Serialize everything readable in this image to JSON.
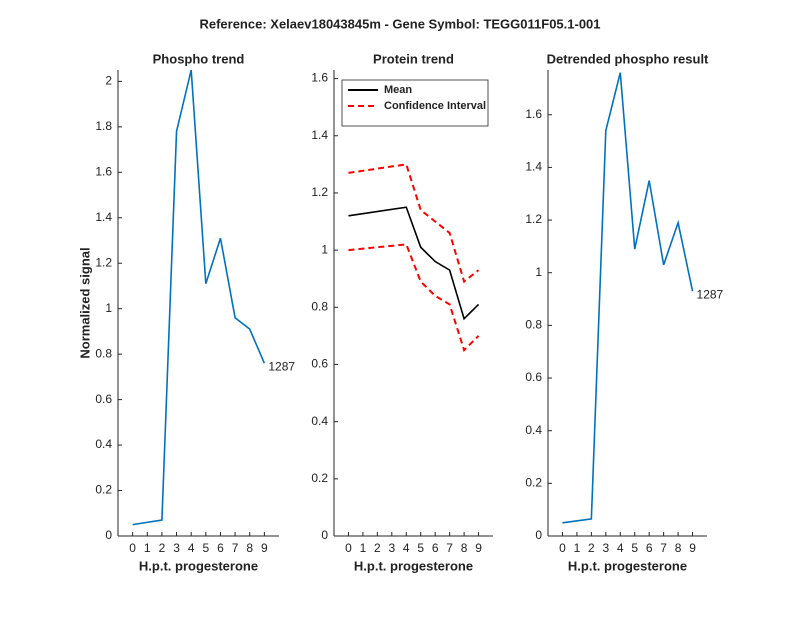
{
  "title": "Reference:  Xelaev18043845m - Gene Symbol:  TEGG011F05.1-001",
  "chart_data": [
    {
      "type": "line",
      "title": "Phospho trend",
      "xlabel": "H.p.t. progesterone",
      "ylabel": "Normalized signal",
      "xlim": [
        -1,
        10
      ],
      "ylim": [
        0,
        2.05
      ],
      "xticks": [
        0,
        1,
        2,
        3,
        4,
        5,
        6,
        7,
        8,
        9
      ],
      "yticks": [
        0,
        0.2,
        0.4,
        0.6,
        0.8,
        1,
        1.2,
        1.4,
        1.6,
        1.8,
        2
      ],
      "annotation": "1287",
      "series": [
        {
          "color": "#0072bd",
          "x": [
            0,
            2,
            3,
            4,
            5,
            6,
            7,
            8,
            9
          ],
          "values": [
            0.05,
            0.07,
            1.78,
            2.05,
            1.11,
            1.31,
            0.96,
            0.91,
            0.76
          ]
        }
      ]
    },
    {
      "type": "line",
      "title": "Protein trend",
      "xlabel": "H.p.t. progesterone",
      "xlim": [
        -1,
        10
      ],
      "ylim": [
        0,
        1.63
      ],
      "xticks": [
        0,
        1,
        2,
        3,
        4,
        5,
        6,
        7,
        8,
        9
      ],
      "yticks": [
        0,
        0.2,
        0.4,
        0.6,
        0.8,
        1,
        1.2,
        1.4,
        1.6
      ],
      "legend": "upper left",
      "series": [
        {
          "name": "Mean",
          "color": "#000000",
          "x": [
            0,
            4,
            5,
            6,
            7,
            8,
            9
          ],
          "values": [
            1.12,
            1.15,
            1.01,
            0.96,
            0.93,
            0.76,
            0.81
          ]
        },
        {
          "name": "Confidence Interval",
          "color": "#ff0000",
          "dash": true,
          "x": [
            0,
            4,
            5,
            6,
            7,
            8,
            9
          ],
          "values": [
            1.27,
            1.3,
            1.14,
            1.1,
            1.06,
            0.89,
            0.93
          ]
        },
        {
          "color": "#ff0000",
          "dash": true,
          "x": [
            0,
            4,
            5,
            6,
            7,
            8,
            9
          ],
          "values": [
            1.0,
            1.02,
            0.89,
            0.84,
            0.81,
            0.65,
            0.7
          ]
        }
      ]
    },
    {
      "type": "line",
      "title": "Detrended phospho result",
      "xlabel": "H.p.t. progesterone",
      "xlim": [
        -1,
        10
      ],
      "ylim": [
        0,
        1.77
      ],
      "xticks": [
        0,
        1,
        2,
        3,
        4,
        5,
        6,
        7,
        8,
        9
      ],
      "yticks": [
        0,
        0.2,
        0.4,
        0.6,
        0.8,
        1,
        1.2,
        1.4,
        1.6
      ],
      "annotation": "1287",
      "series": [
        {
          "color": "#0072bd",
          "x": [
            0,
            2,
            3,
            4,
            5,
            6,
            7,
            8,
            9
          ],
          "values": [
            0.05,
            0.065,
            1.54,
            1.76,
            1.09,
            1.35,
            1.03,
            1.19,
            0.93
          ]
        }
      ]
    }
  ]
}
